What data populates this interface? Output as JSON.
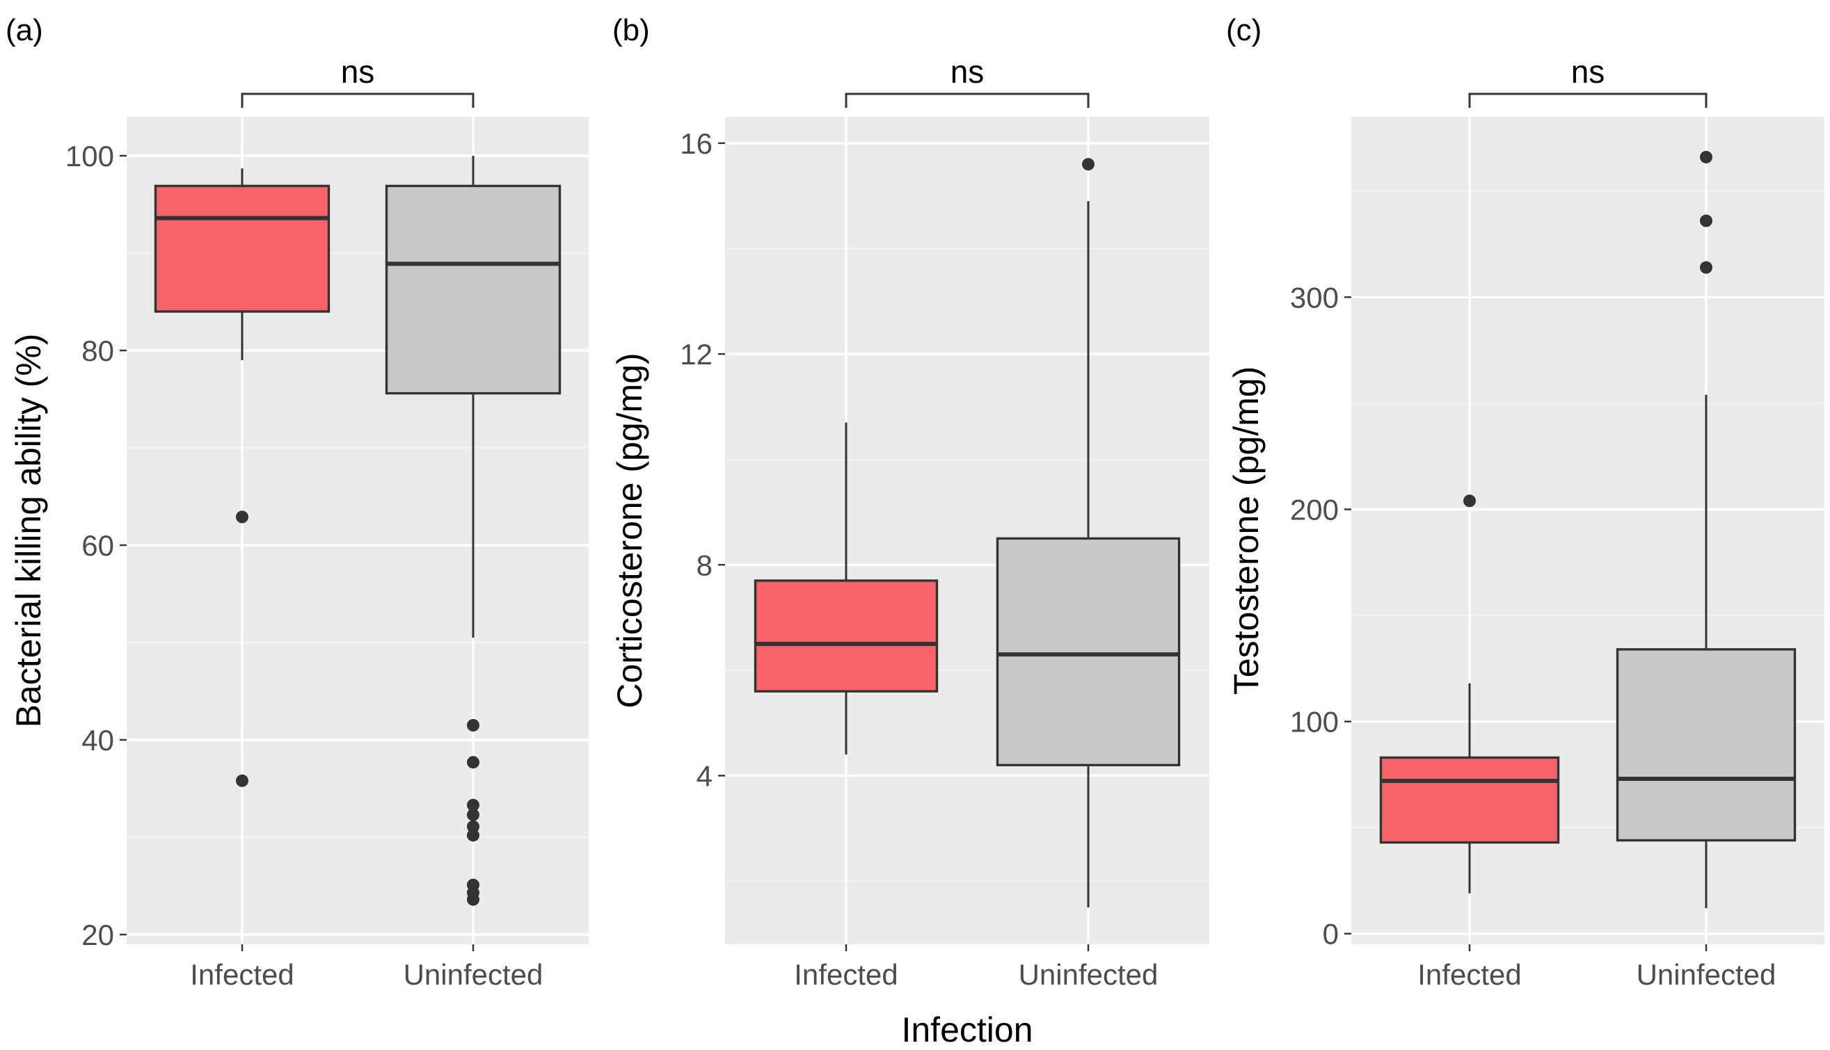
{
  "figure": {
    "x_title": "Infection",
    "colors": {
      "infected": "#f8636a",
      "uninfected": "#c9c9c9",
      "line": "#333333"
    }
  },
  "chart_data": [
    {
      "type": "box",
      "panel": "(a)",
      "ylabel": "Bacterial killing ability (%)",
      "xlabel": "",
      "categories": [
        "Infected",
        "Uninfected"
      ],
      "ylim": [
        19,
        104
      ],
      "yticks": [
        20,
        40,
        60,
        80,
        100
      ],
      "ytick_labels": [
        "20",
        "40",
        "60",
        "80",
        "100"
      ],
      "series": [
        {
          "name": "Infected",
          "whisker_low": 79,
          "q1": 84,
          "median": 93.6,
          "q3": 96.9,
          "whisker_high": 98.7,
          "outliers": [
            62.9,
            35.8
          ]
        },
        {
          "name": "Uninfected",
          "whisker_low": 50.5,
          "q1": 75.6,
          "median": 88.9,
          "q3": 96.9,
          "whisker_high": 100,
          "outliers": [
            41.5,
            37.7,
            33.3,
            32.3,
            31.1,
            30.2,
            25.1,
            24.3,
            23.6
          ]
        }
      ],
      "comparison": {
        "label": "ns",
        "between": [
          "Infected",
          "Uninfected"
        ]
      }
    },
    {
      "type": "box",
      "panel": "(b)",
      "ylabel": "Corticosterone (pg/mg)",
      "xlabel": "Infection",
      "categories": [
        "Infected",
        "Uninfected"
      ],
      "ylim": [
        0.8,
        16.5
      ],
      "yticks": [
        4,
        8,
        12,
        16
      ],
      "ytick_labels": [
        "4",
        "8",
        "12",
        "16"
      ],
      "series": [
        {
          "name": "Infected",
          "whisker_low": 4.4,
          "q1": 5.6,
          "median": 6.5,
          "q3": 7.7,
          "whisker_high": 10.7,
          "outliers": []
        },
        {
          "name": "Uninfected",
          "whisker_low": 1.5,
          "q1": 4.2,
          "median": 6.3,
          "q3": 8.5,
          "whisker_high": 14.9,
          "outliers": [
            15.6
          ]
        }
      ],
      "comparison": {
        "label": "ns",
        "between": [
          "Infected",
          "Uninfected"
        ]
      }
    },
    {
      "type": "box",
      "panel": "(c)",
      "ylabel": "Testosterone (pg/mg)",
      "xlabel": "",
      "categories": [
        "Infected",
        "Uninfected"
      ],
      "ylim": [
        -5,
        385
      ],
      "yticks": [
        0,
        100,
        200,
        300
      ],
      "ytick_labels": [
        "0",
        "100",
        "200",
        "300"
      ],
      "series": [
        {
          "name": "Infected",
          "whisker_low": 19,
          "q1": 43,
          "median": 72,
          "q3": 83,
          "whisker_high": 118,
          "outliers": [
            204
          ]
        },
        {
          "name": "Uninfected",
          "whisker_low": 12,
          "q1": 44,
          "median": 73,
          "q3": 134,
          "whisker_high": 254,
          "outliers": [
            314,
            336,
            366
          ]
        }
      ],
      "comparison": {
        "label": "ns",
        "between": [
          "Infected",
          "Uninfected"
        ]
      }
    }
  ]
}
